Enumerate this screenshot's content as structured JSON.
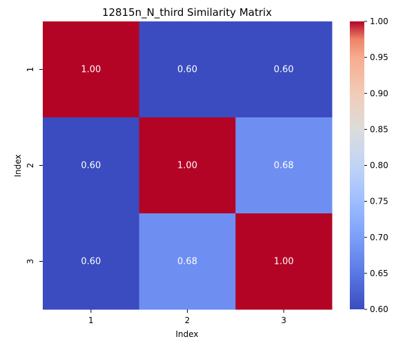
{
  "chart_data": {
    "type": "heatmap",
    "title": "12815n_N_third Similarity Matrix",
    "xlabel": "Index",
    "ylabel": "Index",
    "x_categories": [
      "1",
      "2",
      "3"
    ],
    "y_categories": [
      "1",
      "2",
      "3"
    ],
    "values": [
      [
        1.0,
        0.6,
        0.6
      ],
      [
        0.6,
        1.0,
        0.68
      ],
      [
        0.6,
        0.68,
        1.0
      ]
    ],
    "value_format": "0.00",
    "colormap": "coolwarm",
    "color_range": [
      0.6,
      1.0
    ],
    "colorbar_ticks": [
      "0.60",
      "0.65",
      "0.70",
      "0.75",
      "0.80",
      "0.85",
      "0.90",
      "0.95",
      "1.00"
    ],
    "colorbar_placement": "right",
    "grid": false
  }
}
